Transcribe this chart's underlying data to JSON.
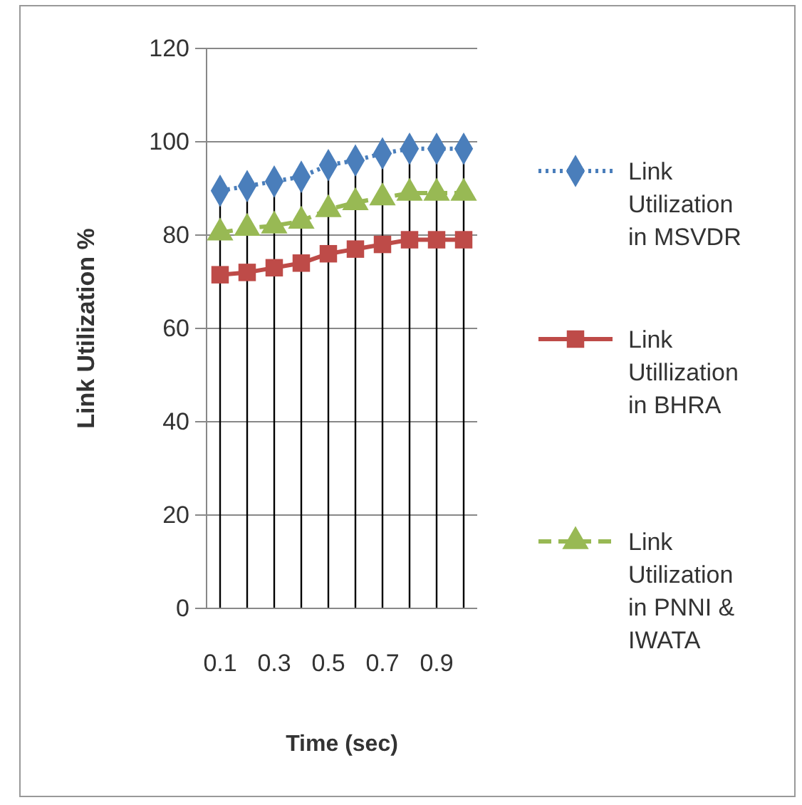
{
  "chart_data": {
    "type": "line",
    "xlabel": "Time (sec)",
    "ylabel": "Link Utilization %",
    "categories": [
      "0.1",
      null,
      "0.3",
      null,
      "0.5",
      null,
      "0.7",
      null,
      "0.9",
      null
    ],
    "ylim": [
      0,
      120
    ],
    "yticks": [
      0,
      20,
      40,
      60,
      80,
      100,
      120
    ],
    "grid": true,
    "legend": "right",
    "series": [
      {
        "name": "Link Utilization in MSVDR",
        "color": "#4a7ebb",
        "marker": "diamond",
        "line_style": "dotted",
        "values": [
          89.5,
          90.5,
          91.5,
          92.5,
          95,
          96,
          97.5,
          98.5,
          98.5,
          98.5
        ]
      },
      {
        "name": "Link Utillization in BHRA",
        "color": "#be4b48",
        "marker": "square",
        "line_style": "solid",
        "values": [
          71.5,
          72,
          73,
          74,
          76,
          77,
          78,
          79,
          79,
          79
        ]
      },
      {
        "name": "Link Utilization in PNNI & IWATA",
        "color": "#98b954",
        "marker": "triangle",
        "line_style": "dashed",
        "values": [
          80.5,
          81.5,
          82,
          83,
          85.5,
          87,
          88,
          89,
          89,
          89
        ]
      }
    ]
  }
}
